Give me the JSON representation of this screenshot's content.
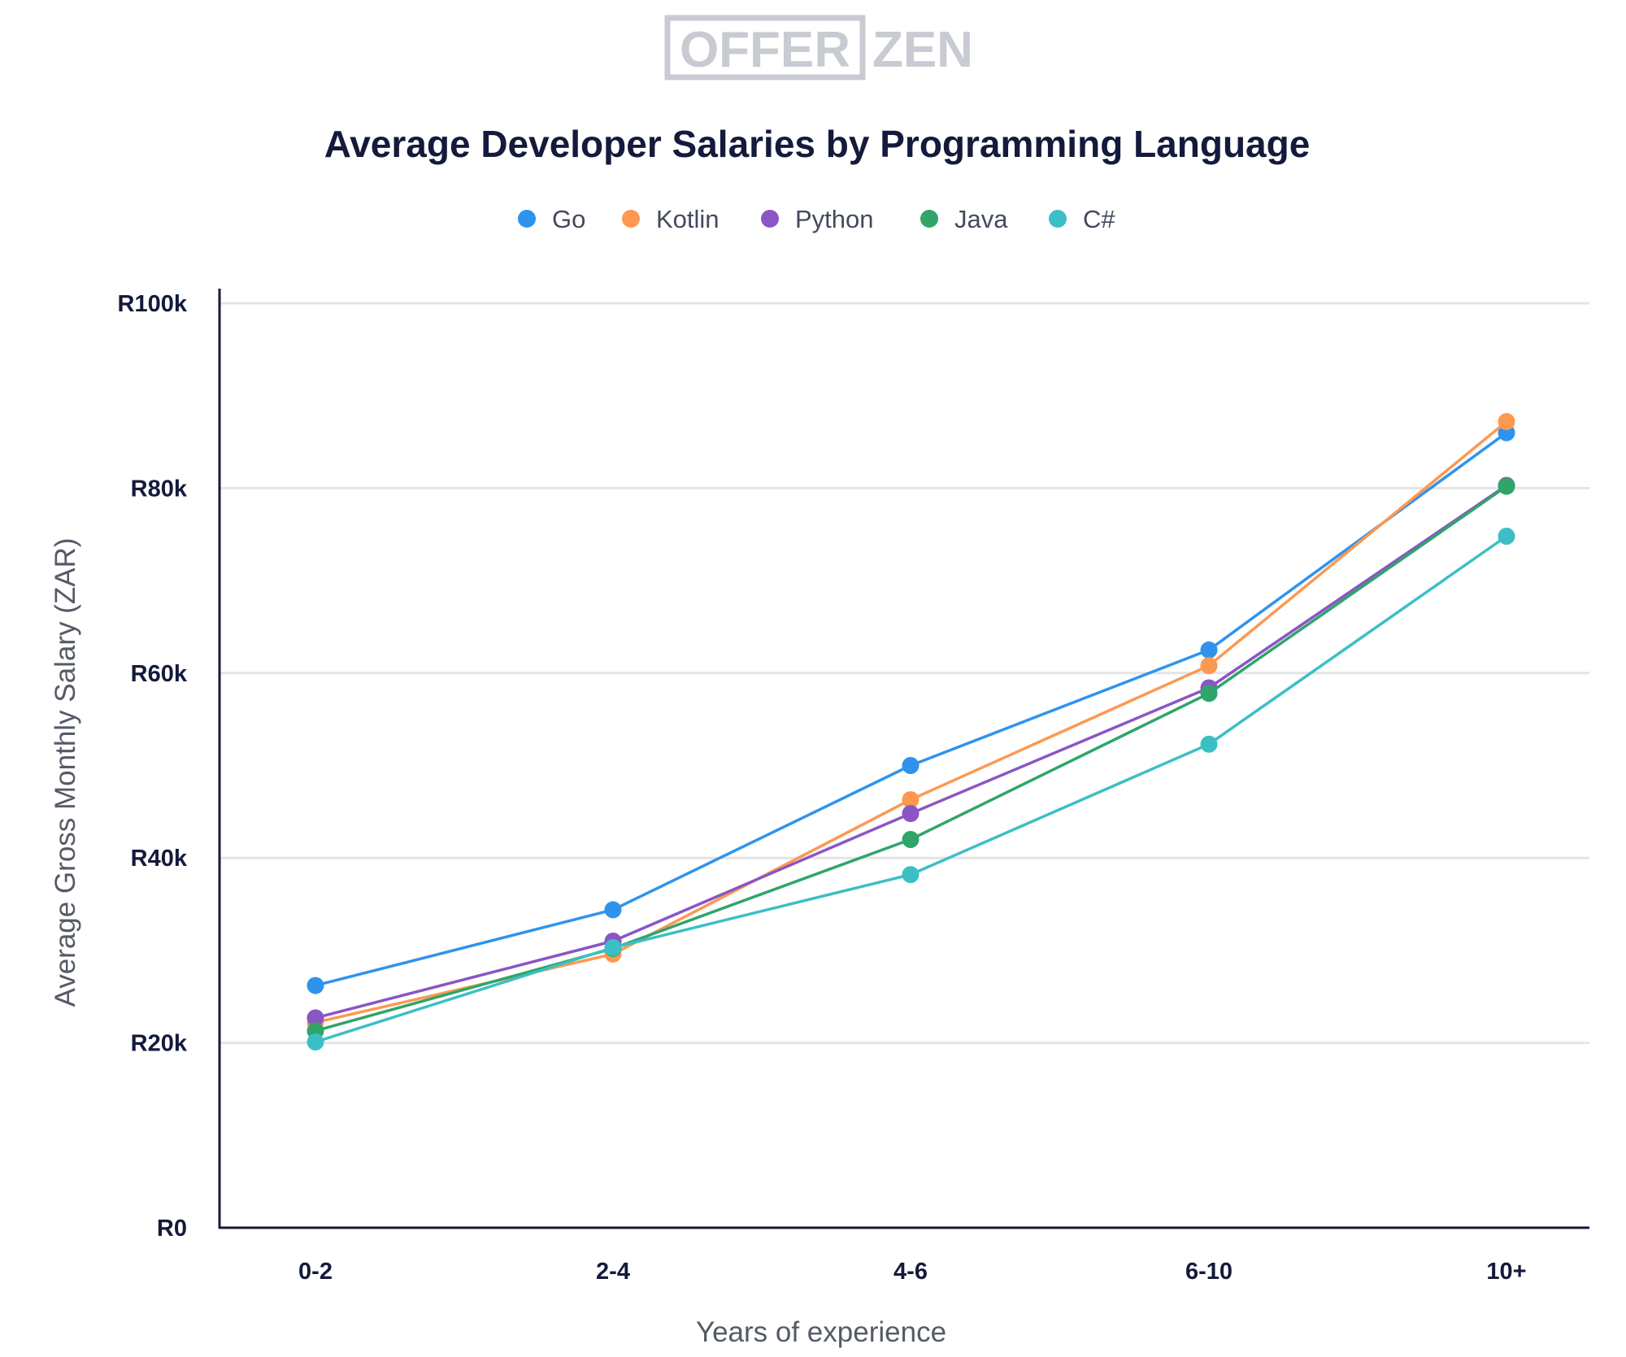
{
  "logo": {
    "boxed_text": "OFFER",
    "plain_text": "ZEN"
  },
  "chart_data": {
    "type": "line",
    "title": "Average Developer Salaries by Programming Language",
    "xlabel": "Years of experience",
    "ylabel": "Average Gross Monthly Salary (ZAR)",
    "categories": [
      "0-2",
      "2-4",
      "4-6",
      "6-10",
      "10+"
    ],
    "ylim": [
      0,
      100000
    ],
    "yticks": [
      {
        "value": 0,
        "label": "R0"
      },
      {
        "value": 20000,
        "label": "R20k"
      },
      {
        "value": 40000,
        "label": "R40k"
      },
      {
        "value": 60000,
        "label": "R60k"
      },
      {
        "value": 80000,
        "label": "R80k"
      },
      {
        "value": 100000,
        "label": "R100k"
      }
    ],
    "grid": true,
    "legend_position": "top-center",
    "series": [
      {
        "name": "Go",
        "color": "#2f93ee",
        "values": [
          26200,
          34400,
          50000,
          62500,
          86000
        ]
      },
      {
        "name": "Kotlin",
        "color": "#fd9850",
        "values": [
          22200,
          29600,
          46300,
          60800,
          87200
        ]
      },
      {
        "name": "Python",
        "color": "#8a55c5",
        "values": [
          22700,
          31000,
          44800,
          58400,
          80300
        ]
      },
      {
        "name": "Java",
        "color": "#2fa56a",
        "values": [
          21300,
          30200,
          42000,
          57800,
          80200
        ]
      },
      {
        "name": "C#",
        "color": "#3bbfc5",
        "values": [
          20100,
          30300,
          38200,
          52300,
          74800
        ]
      }
    ]
  }
}
